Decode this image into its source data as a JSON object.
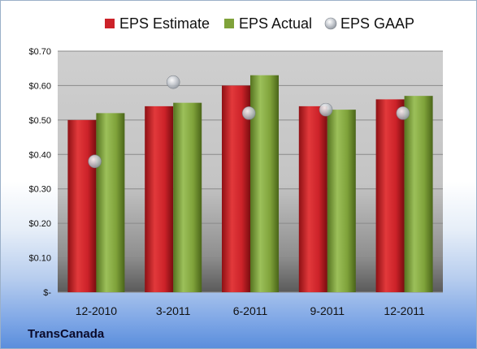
{
  "company": "TransCanada",
  "chart_data": {
    "type": "bar",
    "categories": [
      "12-2010",
      "3-2011",
      "6-2011",
      "9-2011",
      "12-2011"
    ],
    "series": [
      {
        "name": "EPS Estimate",
        "type": "bar",
        "color": "#cc2229",
        "values": [
          0.5,
          0.54,
          0.6,
          0.54,
          0.56
        ]
      },
      {
        "name": "EPS Actual",
        "type": "bar",
        "color": "#7fa23a",
        "values": [
          0.52,
          0.55,
          0.63,
          0.53,
          0.57
        ]
      },
      {
        "name": "EPS GAAP",
        "type": "scatter",
        "color": "#b8bcc4",
        "values": [
          0.38,
          0.61,
          0.52,
          0.53,
          0.52
        ]
      }
    ],
    "yticks": [
      "$-",
      "$0.10",
      "$0.20",
      "$0.30",
      "$0.40",
      "$0.50",
      "$0.60",
      "$0.70"
    ],
    "ylim": [
      0,
      0.7
    ],
    "grid": true,
    "legend_position": "top"
  }
}
